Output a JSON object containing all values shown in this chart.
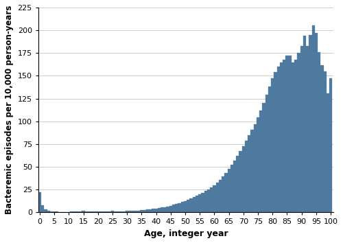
{
  "bar_color": "#4d7a9e",
  "bar_edgecolor": "#4d7a9e",
  "background_color": "#ffffff",
  "xlabel": "Age, integer year",
  "ylabel": "Bacteremic episodes per 10,000 person-years",
  "xlim": [
    -0.5,
    101
  ],
  "ylim": [
    0,
    225
  ],
  "xticks": [
    0,
    5,
    10,
    15,
    20,
    25,
    30,
    35,
    40,
    45,
    50,
    55,
    60,
    65,
    70,
    75,
    80,
    85,
    90,
    95,
    100
  ],
  "yticks": [
    0,
    25,
    50,
    75,
    100,
    125,
    150,
    175,
    200,
    225
  ],
  "grid_color": "#cccccc",
  "xlabel_fontsize": 9,
  "ylabel_fontsize": 8.5,
  "tick_fontsize": 8,
  "values": [
    22.0,
    8.0,
    3.5,
    2.0,
    1.2,
    1.0,
    0.8,
    0.7,
    0.6,
    0.6,
    0.7,
    0.8,
    0.9,
    1.0,
    1.1,
    1.5,
    1.3,
    1.2,
    1.1,
    1.0,
    1.0,
    1.0,
    1.0,
    1.0,
    1.2,
    1.5,
    1.3,
    1.2,
    1.3,
    1.4,
    1.5,
    1.6,
    1.8,
    2.0,
    2.2,
    2.5,
    2.8,
    3.2,
    3.5,
    4.0,
    4.5,
    5.0,
    5.5,
    6.0,
    6.5,
    7.5,
    8.5,
    9.5,
    10.5,
    11.5,
    12.5,
    14.0,
    15.5,
    17.0,
    18.5,
    20.0,
    21.5,
    23.5,
    25.5,
    27.5,
    30.0,
    33.0,
    36.0,
    39.5,
    43.5,
    47.5,
    52.0,
    57.0,
    62.0,
    67.5,
    73.0,
    79.0,
    85.0,
    91.0,
    97.0,
    104.0,
    112.0,
    120.0,
    129.0,
    138.0,
    147.0,
    154.0,
    160.0,
    165.0,
    168.0,
    172.0,
    172.0,
    165.0,
    168.0,
    175.0,
    183.0,
    194.0,
    183.0,
    195.0,
    205.0,
    197.0,
    176.0,
    162.0,
    155.0,
    131.0,
    147.0
  ]
}
